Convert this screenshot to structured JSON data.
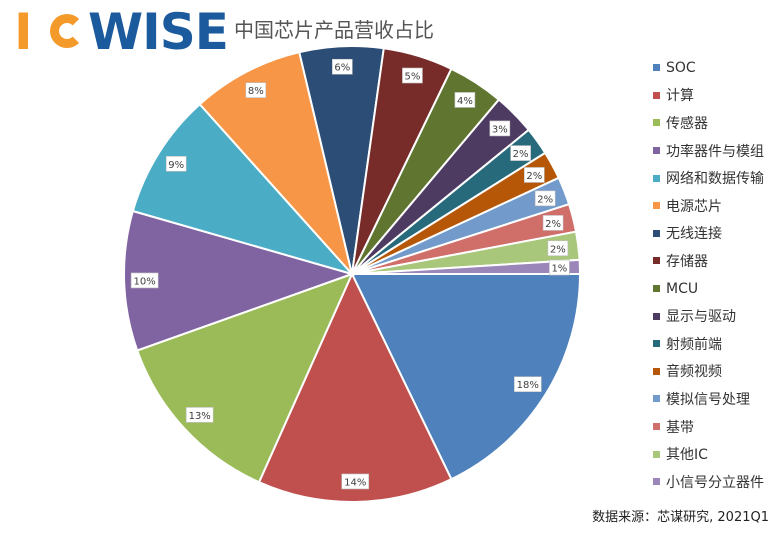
{
  "logo": {
    "text_i": "I",
    "text_wise": "WISE",
    "colors": {
      "orange": "#f39a2a",
      "blue": "#1b5a9c"
    }
  },
  "chart_data": {
    "type": "pie",
    "title": "中国芯片产品营收占比",
    "legend_position": "right",
    "categories": [
      "SOC",
      "计算",
      "传感器",
      "功率器件与模组",
      "网络和数据传输",
      "电源芯片",
      "无线连接",
      "存储器",
      "MCU",
      "显示与驱动",
      "射频前端",
      "音频视频",
      "模拟信号处理",
      "基带",
      "其他IC",
      "小信号分立器件"
    ],
    "values": [
      18,
      14,
      13,
      10,
      9,
      8,
      6,
      5,
      4,
      3,
      2,
      2,
      2,
      2,
      2,
      1
    ],
    "data_labels": [
      "18%",
      "14%",
      "13%",
      "10%",
      "9%",
      "8%",
      "6%",
      "5%",
      "4%",
      "3%",
      "2%",
      "2%",
      "2%",
      "2%",
      "2%",
      "1%"
    ],
    "colors": [
      "#4f81bd",
      "#c0504d",
      "#9bbb59",
      "#8064a2",
      "#4bacc6",
      "#f79646",
      "#2c4d75",
      "#772c2a",
      "#5f7530",
      "#4d3b62",
      "#276a7c",
      "#b65708",
      "#729aca",
      "#d06e6a",
      "#a9c77a",
      "#9a86b9"
    ]
  },
  "source": "数据来源：芯谋研究, 2021Q1"
}
